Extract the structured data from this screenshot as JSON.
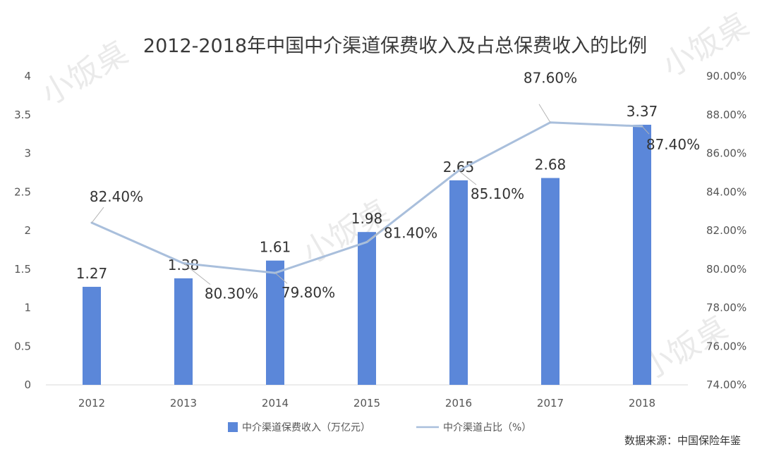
{
  "chart_data": {
    "type": "bar",
    "title": "2012-2018年中国中介渠道保费收入及占总保费收入的比例",
    "categories": [
      "2012",
      "2013",
      "2014",
      "2015",
      "2016",
      "2017",
      "2018"
    ],
    "series": [
      {
        "name": "中介渠道保费收入（万亿元）",
        "type": "bar",
        "axis": "left",
        "values": [
          1.27,
          1.38,
          1.61,
          1.98,
          2.65,
          2.68,
          3.37
        ],
        "labels": [
          "1.27",
          "1.38",
          "1.61",
          "1.98",
          "2.65",
          "2.68",
          "3.37"
        ]
      },
      {
        "name": "中介渠道占比（%）",
        "type": "line",
        "axis": "right",
        "values": [
          82.4,
          80.3,
          79.8,
          81.4,
          85.1,
          87.6,
          87.4
        ],
        "labels": [
          "82.40%",
          "80.30%",
          "79.80%",
          "81.40%",
          "85.10%",
          "87.60%",
          "87.40%"
        ]
      }
    ],
    "y_left": {
      "ylim": [
        0,
        4
      ],
      "ticks": [
        "0",
        "0.5",
        "1",
        "1.5",
        "2",
        "2.5",
        "3",
        "3.5",
        "4"
      ]
    },
    "y_right": {
      "ylim": [
        74,
        90
      ],
      "ticks": [
        "74.00%",
        "76.00%",
        "78.00%",
        "80.00%",
        "82.00%",
        "84.00%",
        "86.00%",
        "88.00%",
        "90.00%"
      ]
    },
    "legend_position": "bottom",
    "grid": false
  },
  "source": "数据来源：中国保险年鉴",
  "watermark": "小饭桌",
  "colors": {
    "bar": "#5b87d9",
    "line": "#a9bfdc",
    "axis": "#d9d9d9",
    "leader": "#b4b4b4"
  }
}
